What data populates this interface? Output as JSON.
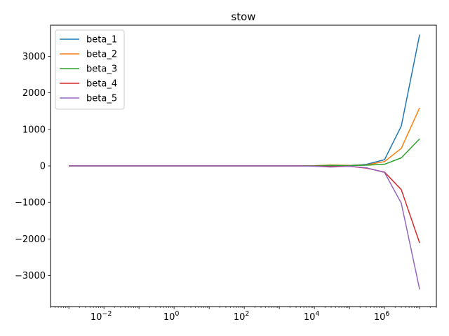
{
  "chart_data": {
    "type": "line",
    "title": "stow",
    "xlabel": "",
    "ylabel": "",
    "xscale": "log",
    "xlim": [
      0.0003,
      30000000
    ],
    "ylim": [
      -3850,
      3850
    ],
    "x": [
      0.001,
      0.003,
      0.01,
      0.03,
      0.1,
      0.3,
      1,
      3,
      10,
      30,
      100,
      300,
      1000,
      3000,
      10000,
      30000,
      100000,
      300000,
      1000000,
      3000000,
      10000000
    ],
    "series": [
      {
        "name": "beta_1",
        "color": "#1f77b4",
        "values": [
          0,
          0,
          0,
          0,
          0,
          0,
          0,
          0,
          0,
          0,
          0,
          0,
          0,
          0,
          2,
          5,
          10,
          40,
          170,
          1090,
          3590
        ]
      },
      {
        "name": "beta_2",
        "color": "#ff7f0e",
        "values": [
          0,
          0,
          0,
          0,
          0,
          0,
          0,
          0,
          0,
          0,
          0,
          0,
          0,
          0,
          5,
          25,
          15,
          25,
          120,
          480,
          1590
        ]
      },
      {
        "name": "beta_3",
        "color": "#2ca02c",
        "values": [
          0,
          0,
          0,
          0,
          0,
          0,
          0,
          0,
          0,
          0,
          0,
          0,
          0,
          0,
          5,
          15,
          10,
          20,
          45,
          220,
          740
        ]
      },
      {
        "name": "beta_4",
        "color": "#d62728",
        "values": [
          0,
          0,
          0,
          0,
          0,
          0,
          0,
          0,
          0,
          0,
          0,
          0,
          0,
          0,
          -5,
          -20,
          -10,
          -60,
          -170,
          -650,
          -2110
        ]
      },
      {
        "name": "beta_5",
        "color": "#9467bd",
        "values": [
          0,
          0,
          0,
          0,
          0,
          0,
          0,
          0,
          0,
          0,
          0,
          0,
          0,
          0,
          -10,
          -30,
          -10,
          -50,
          -180,
          -1020,
          -3380
        ]
      }
    ],
    "xticks": [
      {
        "value": 0.01,
        "base": "10",
        "exp": "−2"
      },
      {
        "value": 1,
        "base": "10",
        "exp": "0"
      },
      {
        "value": 100,
        "base": "10",
        "exp": "2"
      },
      {
        "value": 10000,
        "base": "10",
        "exp": "4"
      },
      {
        "value": 1000000,
        "base": "10",
        "exp": "6"
      }
    ],
    "yticks": [
      {
        "value": -3000,
        "label": "−3000"
      },
      {
        "value": -2000,
        "label": "−2000"
      },
      {
        "value": -1000,
        "label": "−1000"
      },
      {
        "value": 0,
        "label": "0"
      },
      {
        "value": 1000,
        "label": "1000"
      },
      {
        "value": 2000,
        "label": "2000"
      },
      {
        "value": 3000,
        "label": "3000"
      }
    ],
    "grid": false,
    "legend": "top-left"
  }
}
